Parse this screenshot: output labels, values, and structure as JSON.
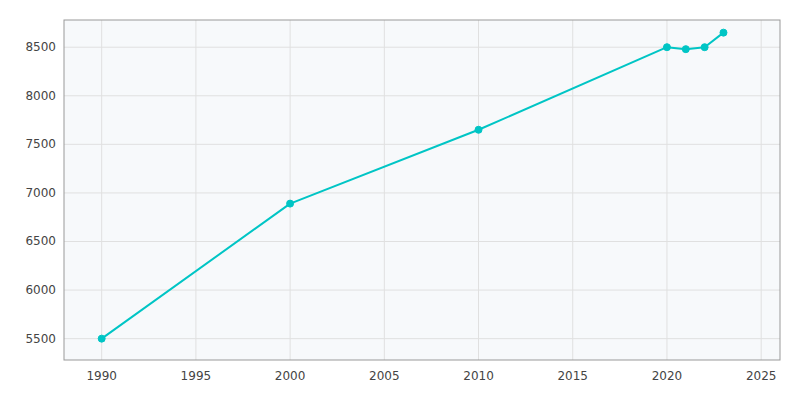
{
  "chart_data": {
    "type": "line",
    "x": [
      1990,
      2000,
      2010,
      2020,
      2021,
      2022,
      2023
    ],
    "values": [
      5500,
      6890,
      7650,
      8500,
      8480,
      8500,
      8650
    ],
    "color": "#00C5C5",
    "marker": "circle",
    "xlim": [
      1988,
      2026
    ],
    "ylim": [
      5280,
      8780
    ],
    "xticks": [
      1990,
      1995,
      2000,
      2005,
      2010,
      2015,
      2020,
      2025
    ],
    "yticks": [
      5500,
      6000,
      6500,
      7000,
      7500,
      8000,
      8500
    ],
    "grid": true
  }
}
